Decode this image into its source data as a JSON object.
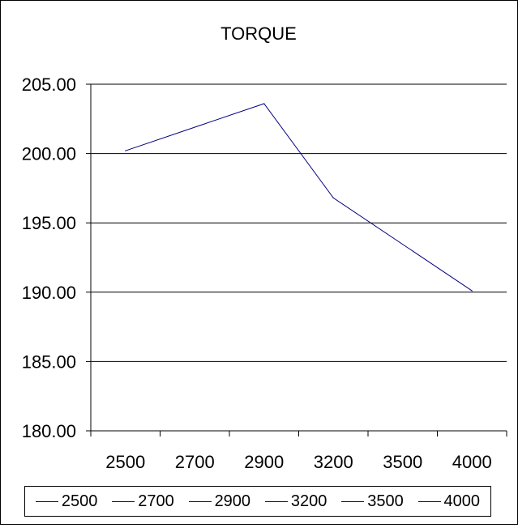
{
  "chart_data": {
    "type": "line",
    "title": "TORQUE",
    "categories": [
      "2500",
      "2700",
      "2900",
      "3200",
      "3500",
      "4000"
    ],
    "y_ticks": [
      "180.00",
      "185.00",
      "190.00",
      "195.00",
      "200.00",
      "205.00"
    ],
    "ylim": [
      180,
      205
    ],
    "grid": true,
    "legend_placement": "bottom",
    "series": [
      {
        "color": "#000080",
        "points": [
          {
            "x": "2500",
            "y": 200.2
          },
          {
            "x": "2900",
            "y": 203.6
          },
          {
            "x": "3200",
            "y": 196.8
          },
          {
            "x": "4000",
            "y": 190.1
          }
        ]
      }
    ],
    "legend_entries": [
      "2500",
      "2700",
      "2900",
      "3200",
      "3500",
      "4000"
    ]
  }
}
